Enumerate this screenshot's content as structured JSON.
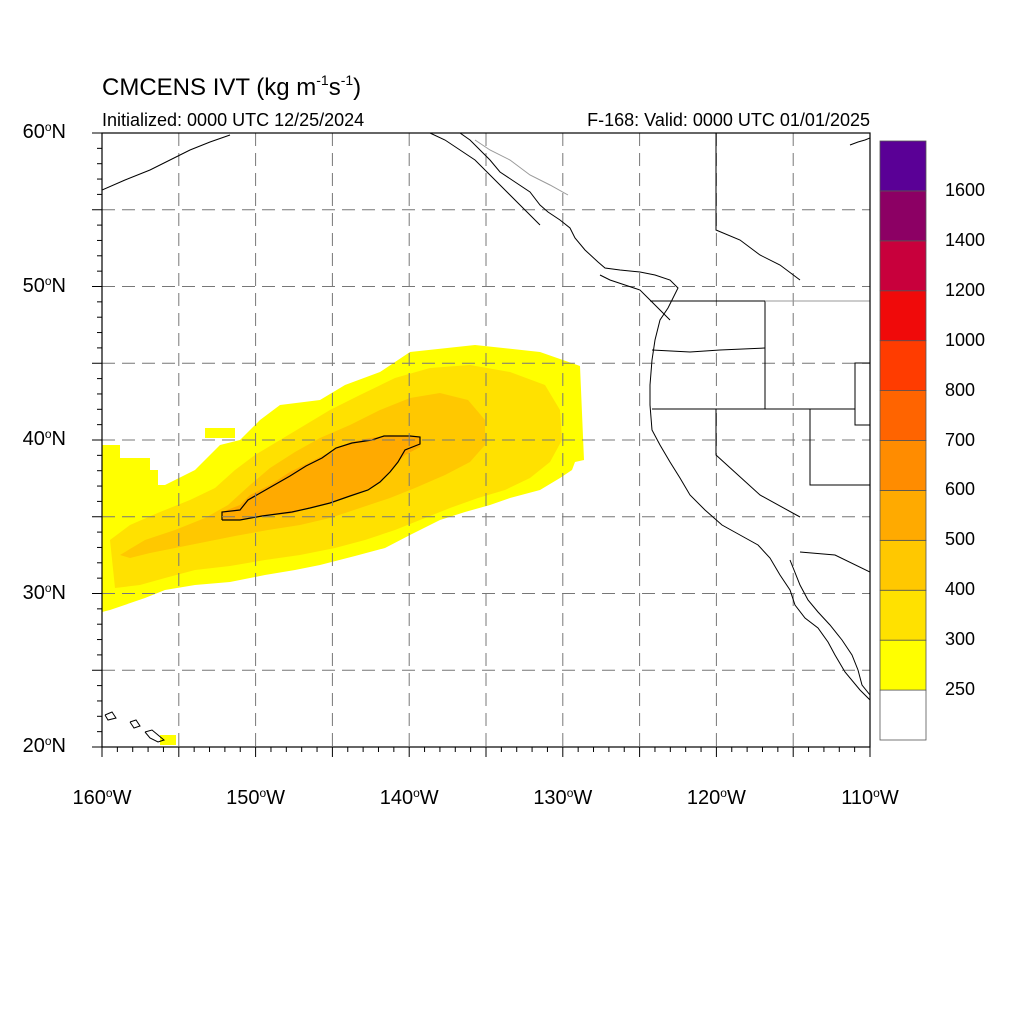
{
  "title": {
    "model": "CMCENS",
    "variable": "IVT",
    "units_prefix": "(kg m",
    "exp1": "-1",
    "units_mid": "s",
    "exp2": "-1",
    "units_suffix": ")"
  },
  "initialized": "Initialized: 0000 UTC 12/25/2024",
  "valid": "F-168: Valid: 0000 UTC 01/01/2025",
  "map": {
    "lon_range": [
      -160,
      -110
    ],
    "lat_range": [
      20,
      60
    ],
    "lat_labels": [
      "60",
      "50",
      "40",
      "30",
      "20"
    ],
    "lat_suffix": "N",
    "lon_labels": [
      "160",
      "150",
      "140",
      "130",
      "120",
      "110"
    ],
    "lon_suffix": "W",
    "degree": "o",
    "grid": "dashed, every 5 degrees"
  },
  "colorbar": {
    "labels": [
      "1600",
      "1400",
      "1200",
      "1000",
      "800",
      "700",
      "600",
      "500",
      "400",
      "300",
      "250"
    ],
    "colors": [
      "#ffffff",
      "#ffff00",
      "#ffe100",
      "#ffc800",
      "#ffaa00",
      "#ff8c00",
      "#ff6400",
      "#ff3c00",
      "#f00a0a",
      "#c8003c",
      "#8c0064",
      "#5a0096"
    ]
  },
  "features": {
    "ivt_plume": "atmospheric river from ~160W 30N to ~130W 45N, core 500-600 kg/m/s near 150W-140W",
    "contour": "black contour outlining the 500 kg/m/s core"
  }
}
